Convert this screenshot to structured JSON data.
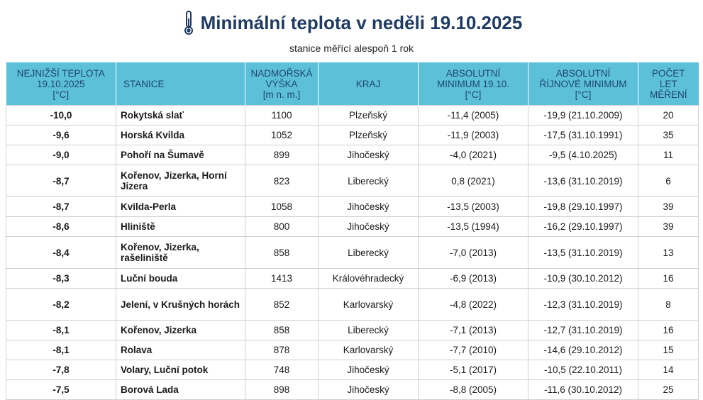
{
  "page": {
    "title": "Minimální teplota v neděli 19.10.2025",
    "subtitle": "stanice měřící alespoň 1 rok",
    "title_icon": "thermometer-icon"
  },
  "table": {
    "headers": [
      [
        "NEJNIŽŠÍ TEPLOTA",
        "19.10.2025",
        "[°C]"
      ],
      [
        "STANICE"
      ],
      [
        "NADMOŘSKÁ",
        "VÝŠKA",
        "[m n. m.]"
      ],
      [
        "KRAJ"
      ],
      [
        "ABSOLUTNÍ",
        "MINIMUM 19.10.",
        "[°C]"
      ],
      [
        "ABSOLUTNÍ",
        "ŘÍJNOVÉ MINIMUM",
        "[°C]"
      ],
      [
        "POČET",
        "LET",
        "MĚŘENÍ"
      ]
    ],
    "rows": [
      {
        "temp": "-10,0",
        "station": "Rokytská slať",
        "alt": "1100",
        "region": "Plzeňský",
        "absmin": "-11,4 (2005)",
        "octmin": "-19,9 (21.10.2009)",
        "years": "20"
      },
      {
        "temp": "-9,6",
        "station": "Horská Kvilda",
        "alt": "1052",
        "region": "Plzeňský",
        "absmin": "-11,9 (2003)",
        "octmin": "-17,5 (31.10.1991)",
        "years": "35"
      },
      {
        "temp": "-9,0",
        "station": "Pohoří na Šumavě",
        "alt": "899",
        "region": "Jihočeský",
        "absmin": "-4,0 (2021)",
        "octmin": "-9,5 (4.10.2025)",
        "years": "11"
      },
      {
        "temp": "-8,7",
        "station": "Kořenov, Jizerka, Horní Jizera",
        "alt": "823",
        "region": "Liberecký",
        "absmin": "0,8 (2021)",
        "octmin": "-13,6 (31.10.2019)",
        "years": "6"
      },
      {
        "temp": "-8,7",
        "station": "Kvilda-Perla",
        "alt": "1058",
        "region": "Jihočeský",
        "absmin": "-13,5 (2003)",
        "octmin": "-19,8 (29.10.1997)",
        "years": "39"
      },
      {
        "temp": "-8,6",
        "station": "Hliniště",
        "alt": "800",
        "region": "Jihočeský",
        "absmin": "-13,5 (1994)",
        "octmin": "-16,2 (29.10.1997)",
        "years": "39"
      },
      {
        "temp": "-8,4",
        "station": "Kořenov, Jizerka, rašeliniště",
        "alt": "858",
        "region": "Liberecký",
        "absmin": "-7,0 (2013)",
        "octmin": "-13,5 (31.10.2019)",
        "years": "13"
      },
      {
        "temp": "-8,3",
        "station": "Luční bouda",
        "alt": "1413",
        "region": "Královéhradecký",
        "absmin": "-6,9 (2013)",
        "octmin": "-10,9 (30.10.2012)",
        "years": "16"
      },
      {
        "temp": "-8,2",
        "station": "Jelení, v Krušných horách",
        "alt": "852",
        "region": "Karlovarský",
        "absmin": "-4,8 (2022)",
        "octmin": "-12,3 (31.10.2019)",
        "years": "8"
      },
      {
        "temp": "-8,1",
        "station": "Kořenov, Jizerka",
        "alt": "858",
        "region": "Liberecký",
        "absmin": "-7,1 (2013)",
        "octmin": "-12,7 (31.10.2019)",
        "years": "16"
      },
      {
        "temp": "-8,1",
        "station": "Rolava",
        "alt": "878",
        "region": "Karlovarský",
        "absmin": "-7,7 (2010)",
        "octmin": "-14,6 (29.10.2012)",
        "years": "15"
      },
      {
        "temp": "-7,8",
        "station": "Volary, Luční potok",
        "alt": "748",
        "region": "Jihočeský",
        "absmin": "-5,1 (2017)",
        "octmin": "-10,5 (22.10.2011)",
        "years": "14"
      },
      {
        "temp": "-7,5",
        "station": "Borová Lada",
        "alt": "898",
        "region": "Jihočeský",
        "absmin": "-8,8 (2005)",
        "octmin": "-11,6 (30.10.2012)",
        "years": "25"
      }
    ]
  },
  "colors": {
    "header_bg": "#5bc0d8",
    "header_text": "#1f4670",
    "title": "#1f3b63"
  }
}
